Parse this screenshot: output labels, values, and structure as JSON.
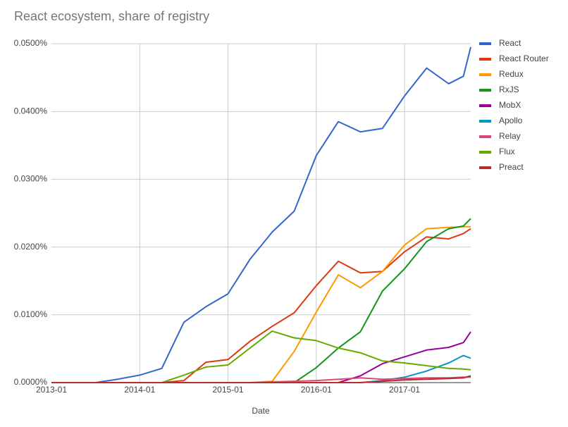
{
  "chart_data": {
    "type": "line",
    "title": "React ecosystem, share of registry",
    "x_label": "Date",
    "x": [
      "2013-01",
      "2013-04",
      "2013-07",
      "2013-10",
      "2014-01",
      "2014-04",
      "2014-07",
      "2014-10",
      "2015-01",
      "2015-04",
      "2015-07",
      "2015-10",
      "2016-01",
      "2016-04",
      "2016-07",
      "2016-10",
      "2017-01",
      "2017-04",
      "2017-07",
      "2017-09",
      "2017-10"
    ],
    "xlim": [
      "2013-01",
      "2017-10"
    ],
    "xticks": [
      "2013-01",
      "2014-01",
      "2015-01",
      "2016-01",
      "2017-01"
    ],
    "ylim": [
      0,
      0.05
    ],
    "yticks": [
      {
        "value": 0,
        "label": "0.0000%"
      },
      {
        "value": 0.01,
        "label": "0.0100%"
      },
      {
        "value": 0.02,
        "label": "0.0200%"
      },
      {
        "value": 0.03,
        "label": "0.0300%"
      },
      {
        "value": 0.04,
        "label": "0.0400%"
      },
      {
        "value": 0.05,
        "label": "0.0500%"
      }
    ],
    "grid": true,
    "legend": "right",
    "series": [
      {
        "name": "React",
        "color": "#3366cc",
        "values": [
          0,
          0,
          0,
          0.0005,
          0.0011,
          0.0021,
          0.0089,
          0.0112,
          0.0131,
          0.0182,
          0.0222,
          0.0253,
          0.0335,
          0.0385,
          0.037,
          0.0375,
          0.0423,
          0.0464,
          0.0441,
          0.0452,
          0.0495
        ]
      },
      {
        "name": "React Router",
        "color": "#dc3912",
        "values": [
          0,
          0,
          0,
          0,
          0,
          0,
          0.0003,
          0.003,
          0.0034,
          0.0061,
          0.0083,
          0.0103,
          0.0143,
          0.0179,
          0.0162,
          0.0164,
          0.0193,
          0.0215,
          0.0212,
          0.022,
          0.0227
        ]
      },
      {
        "name": "Redux",
        "color": "#ff9900",
        "values": [
          0,
          0,
          0,
          0,
          0,
          0,
          0,
          0,
          0,
          0,
          0.0002,
          0.0046,
          0.0104,
          0.0159,
          0.014,
          0.0164,
          0.0203,
          0.0227,
          0.0229,
          0.023,
          0.023
        ]
      },
      {
        "name": "RxJS",
        "color": "#109618",
        "values": [
          0,
          0,
          0,
          0,
          0,
          0,
          0,
          0,
          0,
          0,
          0,
          0,
          0.0022,
          0.0051,
          0.0075,
          0.0135,
          0.0168,
          0.0208,
          0.0227,
          0.0231,
          0.0242
        ]
      },
      {
        "name": "MobX",
        "color": "#990099",
        "values": [
          0,
          0,
          0,
          0,
          0,
          0,
          0,
          0,
          0,
          0,
          0,
          0,
          0,
          0,
          0.001,
          0.0028,
          0.0038,
          0.0048,
          0.0052,
          0.0059,
          0.0075
        ]
      },
      {
        "name": "Apollo",
        "color": "#0099c6",
        "values": [
          0,
          0,
          0,
          0,
          0,
          0,
          0,
          0,
          0,
          0,
          0,
          0,
          0,
          0,
          0,
          0.0003,
          0.0008,
          0.0017,
          0.0029,
          0.004,
          0.0036
        ]
      },
      {
        "name": "Relay",
        "color": "#dd4477",
        "values": [
          0,
          0,
          0,
          0,
          0,
          0,
          0,
          0,
          0,
          0,
          0.0001,
          0.0002,
          0.0003,
          0.0005,
          0.0007,
          0.0005,
          0.0006,
          0.0007,
          0.0007,
          0.0008,
          0.0008
        ]
      },
      {
        "name": "Flux",
        "color": "#66aa00",
        "values": [
          0,
          0,
          0,
          0,
          0,
          0,
          0.0011,
          0.0023,
          0.0026,
          0.0051,
          0.0076,
          0.0066,
          0.0062,
          0.0051,
          0.0044,
          0.0032,
          0.0029,
          0.0025,
          0.0021,
          0.002,
          0.0019
        ]
      },
      {
        "name": "Preact",
        "color": "#b82e2e",
        "values": [
          0,
          0,
          0,
          0,
          0,
          0,
          0,
          0,
          0,
          0,
          0,
          0,
          0,
          0,
          0,
          0.0002,
          0.0004,
          0.0005,
          0.0006,
          0.0007,
          0.001
        ]
      }
    ]
  }
}
